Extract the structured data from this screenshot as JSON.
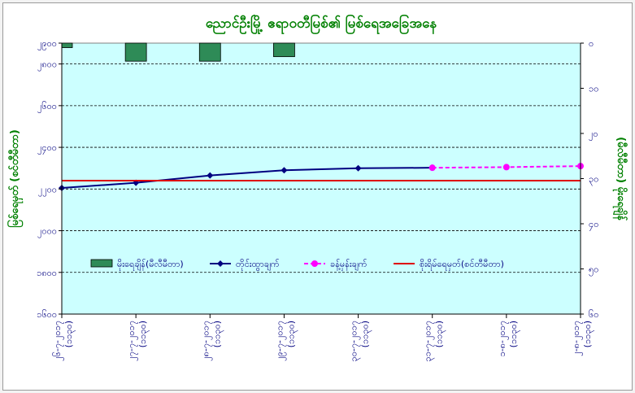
{
  "chart_data": {
    "type": "bar+line",
    "title": "ညောင်ဦးမြို့ ဧရာဝတီမြစ်၏ မြစ်ရေအခြေအနေ",
    "ylabel_left": "မြစ်ရေမှတ် (စင်တီမီတာ)",
    "ylabel_right": "(မီလီမီတာ) မိုးရေချိန်",
    "left_axis": {
      "min": 1600,
      "max": 2900,
      "step": 200,
      "tick_labels": [
        "၁၆၀၀",
        "၁၈၀၀",
        "၂၀၀၀",
        "၂၂၀၀",
        "၂၄၀၀",
        "၂၆၀၀",
        "၂၈၀၀",
        "၂၉၀၀"
      ],
      "tick_values": [
        1600,
        1800,
        2000,
        2200,
        2400,
        2600,
        2800,
        2900
      ]
    },
    "right_axis": {
      "min": 0,
      "max": 60,
      "reversed": true,
      "step": 10,
      "tick_labels": [
        "၀",
        "၁၀",
        "၂၀",
        "၃၀",
        "၄၀",
        "၅၀",
        "၆၀"
      ],
      "tick_values": [
        0,
        10,
        20,
        30,
        40,
        50,
        60
      ]
    },
    "categories": [
      {
        "date": "၂၆-၇-၂၀၁၇",
        "time": "(၁၁၃၀)"
      },
      {
        "date": "၂၇-၇-၂၀၁၇",
        "time": "(၁၁၃၀)"
      },
      {
        "date": "၂၈-၇-၂၀၁၇",
        "time": "(၁၁၃၀)"
      },
      {
        "date": "၂၉-၇-၂၀၁၇",
        "time": "(၁၁၃၀)"
      },
      {
        "date": "၃၀-၇-၂၀၁၇",
        "time": "(၁၁၃၀)"
      },
      {
        "date": "၃၁-၇-၂၀၁၇",
        "time": "(၁၁၃၀)"
      },
      {
        "date": "၁-၈-၂၀၁၇",
        "time": "(၁၁၃၀)"
      },
      {
        "date": "၂-၈-၂၀၁၇",
        "time": "(၁၁၃၀)"
      }
    ],
    "series": [
      {
        "name": "မိုးရေချိန်(မီလီမီတာ)",
        "kind": "bar",
        "axis": "right",
        "color": "#2e8b57",
        "values": [
          1,
          4,
          4,
          3,
          null,
          null,
          null,
          null
        ]
      },
      {
        "name": "တိုင်းထွာချက်",
        "kind": "line",
        "axis": "left",
        "color": "#000080",
        "values": [
          2205,
          2230,
          2265,
          2290,
          2300,
          2302,
          null,
          null
        ]
      },
      {
        "name": "ခန့်မှန်းချက်",
        "kind": "line-dashed",
        "axis": "left",
        "color": "#ff00ff",
        "values": [
          null,
          null,
          null,
          null,
          null,
          2302,
          2305,
          2310
        ]
      },
      {
        "name": "စိုးရိမ်ရေမှတ်(စင်တီမီတာ)",
        "kind": "hline",
        "axis": "left",
        "color": "#dd0000",
        "value": 2240
      }
    ],
    "legend_position": "inside-bottom",
    "grid": true
  }
}
